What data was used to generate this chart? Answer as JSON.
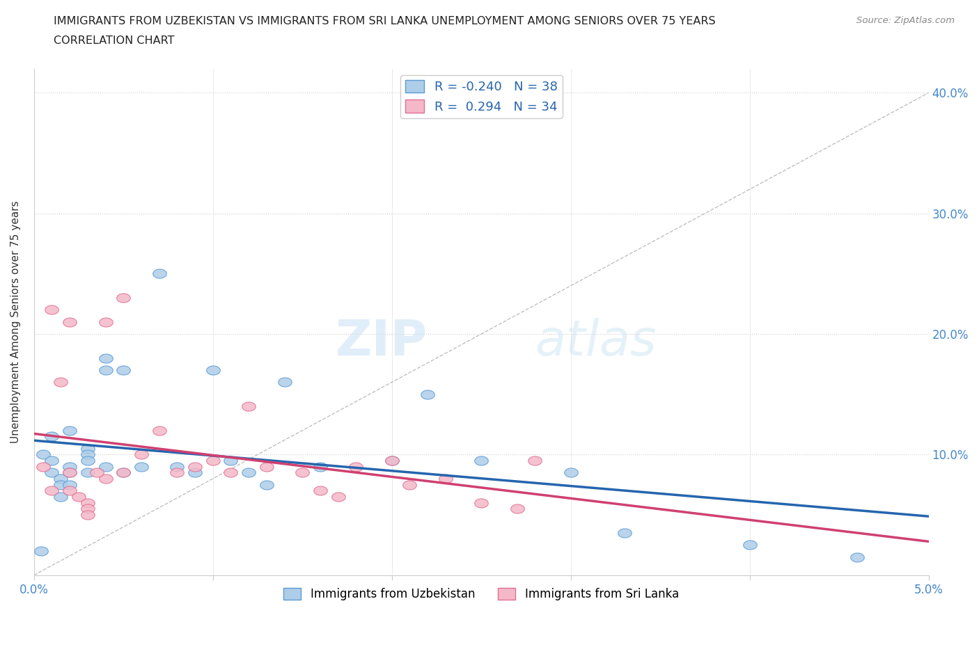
{
  "title_line1": "IMMIGRANTS FROM UZBEKISTAN VS IMMIGRANTS FROM SRI LANKA UNEMPLOYMENT AMONG SENIORS OVER 75 YEARS",
  "title_line2": "CORRELATION CHART",
  "source": "Source: ZipAtlas.com",
  "ylabel": "Unemployment Among Seniors over 75 years",
  "xlim": [
    0.0,
    0.05
  ],
  "ylim": [
    0.0,
    0.42
  ],
  "xticks": [
    0.0,
    0.01,
    0.02,
    0.03,
    0.04,
    0.05
  ],
  "yticks": [
    0.0,
    0.1,
    0.2,
    0.3,
    0.4
  ],
  "xticklabels": [
    "0.0%",
    "",
    "",
    "",
    "",
    "5.0%"
  ],
  "yticklabels_right": [
    "",
    "10.0%",
    "20.0%",
    "30.0%",
    "40.0%"
  ],
  "r_uzbekistan": -0.24,
  "n_uzbekistan": 38,
  "r_sri_lanka": 0.294,
  "n_sri_lanka": 34,
  "color_uzbekistan": "#aecde8",
  "color_sri_lanka": "#f4b8c8",
  "edge_color_uzbekistan": "#5b9bd5",
  "edge_color_sri_lanka": "#e07090",
  "line_color_uzbekistan": "#2565ae",
  "line_color_sri_lanka": "#d04070",
  "line_color_dashed": "#c0c0c0",
  "uzbekistan_x": [
    0.0005,
    0.001,
    0.001,
    0.001,
    0.0015,
    0.0015,
    0.0015,
    0.002,
    0.002,
    0.002,
    0.002,
    0.003,
    0.003,
    0.003,
    0.003,
    0.004,
    0.004,
    0.004,
    0.005,
    0.005,
    0.006,
    0.007,
    0.008,
    0.009,
    0.01,
    0.011,
    0.012,
    0.013,
    0.014,
    0.016,
    0.02,
    0.022,
    0.025,
    0.03,
    0.033,
    0.04,
    0.046,
    0.0004
  ],
  "uzbekistan_y": [
    0.1,
    0.115,
    0.095,
    0.085,
    0.08,
    0.075,
    0.065,
    0.12,
    0.09,
    0.085,
    0.075,
    0.105,
    0.1,
    0.095,
    0.085,
    0.18,
    0.17,
    0.09,
    0.17,
    0.085,
    0.09,
    0.25,
    0.09,
    0.085,
    0.17,
    0.095,
    0.085,
    0.075,
    0.16,
    0.09,
    0.095,
    0.15,
    0.095,
    0.085,
    0.035,
    0.025,
    0.015,
    0.02
  ],
  "sri_lanka_x": [
    0.0005,
    0.001,
    0.001,
    0.002,
    0.002,
    0.002,
    0.0025,
    0.003,
    0.003,
    0.003,
    0.004,
    0.004,
    0.005,
    0.005,
    0.006,
    0.007,
    0.008,
    0.009,
    0.01,
    0.011,
    0.012,
    0.013,
    0.015,
    0.016,
    0.017,
    0.018,
    0.02,
    0.021,
    0.023,
    0.025,
    0.027,
    0.028,
    0.0015,
    0.0035
  ],
  "sri_lanka_y": [
    0.09,
    0.22,
    0.07,
    0.21,
    0.085,
    0.07,
    0.065,
    0.06,
    0.055,
    0.05,
    0.21,
    0.08,
    0.23,
    0.085,
    0.1,
    0.12,
    0.085,
    0.09,
    0.095,
    0.085,
    0.14,
    0.09,
    0.085,
    0.07,
    0.065,
    0.09,
    0.095,
    0.075,
    0.08,
    0.06,
    0.055,
    0.095,
    0.16,
    0.085
  ],
  "watermark_zip": "ZIP",
  "watermark_atlas": "atlas",
  "legend_label_uzbekistan": "Immigrants from Uzbekistan",
  "legend_label_sri_lanka": "Immigrants from Sri Lanka"
}
